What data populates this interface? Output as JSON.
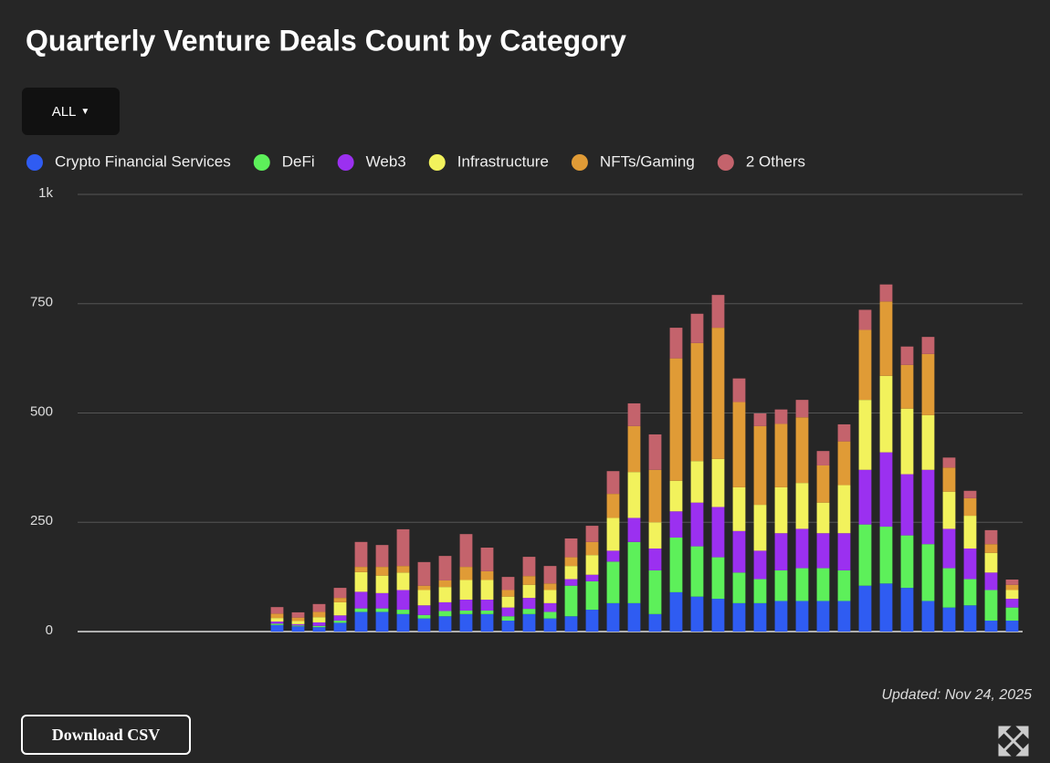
{
  "controls": {
    "filter": "ALL",
    "download": "Download CSV"
  },
  "chart_data": {
    "type": "stacked_bar",
    "title": "Quarterly Venture Deals Count by Category",
    "note": "Updated: Nov 24, 2025",
    "categories": [
      null,
      null,
      null,
      null,
      null,
      null,
      null,
      null,
      null,
      null,
      null,
      null,
      null,
      null,
      null,
      null,
      null,
      null,
      null,
      null,
      null,
      null,
      null,
      null,
      null,
      null,
      null,
      null,
      null,
      null,
      null,
      null,
      null,
      null,
      null,
      null,
      null,
      null,
      null,
      null,
      null,
      null,
      null,
      null,
      null
    ],
    "ylim": [
      0,
      1000
    ],
    "yticks": [
      0,
      250,
      500,
      750,
      {
        "value": 1000,
        "label": "1k"
      }
    ],
    "grid": true,
    "series": [
      {
        "name": "Crypto Financial Services",
        "color": "#2f5cf2",
        "values": [
          0,
          0,
          0,
          0,
          0,
          0,
          0,
          0,
          0,
          15,
          12,
          10,
          20,
          45,
          45,
          40,
          30,
          35,
          40,
          40,
          25,
          40,
          30,
          35,
          50,
          65,
          65,
          40,
          90,
          80,
          75,
          65,
          65,
          70,
          70,
          70,
          70,
          105,
          110,
          100,
          70,
          55,
          60,
          25,
          25
        ]
      },
      {
        "name": "DeFi",
        "color": "#5df05a",
        "values": [
          0,
          0,
          0,
          0,
          0,
          0,
          0,
          0,
          0,
          3,
          2,
          3,
          5,
          8,
          8,
          10,
          8,
          12,
          8,
          8,
          10,
          12,
          15,
          70,
          65,
          95,
          140,
          100,
          125,
          115,
          95,
          70,
          55,
          70,
          75,
          75,
          70,
          140,
          130,
          120,
          130,
          90,
          60,
          70,
          30
        ]
      },
      {
        "name": "Web3",
        "color": "#9b30f0",
        "values": [
          0,
          0,
          0,
          0,
          0,
          0,
          0,
          0,
          0,
          5,
          3,
          8,
          12,
          38,
          35,
          45,
          22,
          20,
          25,
          25,
          20,
          25,
          20,
          15,
          15,
          25,
          55,
          50,
          60,
          100,
          115,
          95,
          65,
          85,
          90,
          80,
          85,
          125,
          170,
          140,
          170,
          90,
          70,
          40,
          20
        ]
      },
      {
        "name": "Infrastructure",
        "color": "#f2f25c",
        "values": [
          0,
          0,
          0,
          0,
          0,
          0,
          0,
          0,
          0,
          8,
          7,
          12,
          30,
          45,
          40,
          40,
          35,
          35,
          45,
          45,
          25,
          30,
          30,
          30,
          45,
          75,
          105,
          60,
          70,
          95,
          110,
          100,
          105,
          105,
          105,
          70,
          110,
          160,
          175,
          150,
          125,
          85,
          75,
          45,
          20
        ]
      },
      {
        "name": "NFTs/Gaming",
        "color": "#e09b36",
        "values": [
          0,
          0,
          0,
          0,
          0,
          0,
          0,
          0,
          0,
          10,
          8,
          12,
          10,
          12,
          20,
          15,
          10,
          15,
          30,
          20,
          15,
          20,
          15,
          20,
          30,
          55,
          105,
          120,
          280,
          270,
          300,
          195,
          180,
          145,
          150,
          85,
          100,
          160,
          170,
          100,
          140,
          55,
          40,
          20,
          12
        ]
      },
      {
        "name": "2 Others",
        "color": "#c4636c",
        "values": [
          0,
          0,
          0,
          0,
          0,
          0,
          0,
          0,
          0,
          15,
          12,
          18,
          23,
          57,
          50,
          84,
          54,
          56,
          75,
          54,
          30,
          44,
          40,
          43,
          37,
          52,
          52,
          81,
          70,
          67,
          75,
          54,
          29,
          33,
          40,
          33,
          39,
          46,
          39,
          42,
          39,
          23,
          17,
          32,
          12
        ]
      }
    ]
  }
}
